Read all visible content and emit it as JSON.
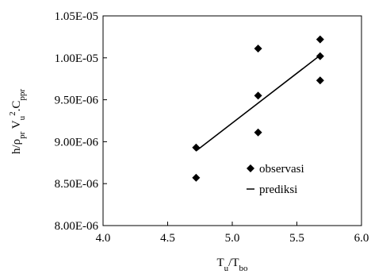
{
  "chart_data": {
    "type": "scatter",
    "xlabel": {
      "base": "T",
      "sub1": "u",
      "sep": "/T",
      "sub2": "bo"
    },
    "ylabel": {
      "p1": "h/ρ",
      "s1": "pr",
      "p2": " V",
      "s2": "u",
      "sup": "2",
      "p3": ".C",
      "s3": "ppr"
    },
    "xlim": [
      4.0,
      6.0
    ],
    "ylim": [
      8e-06,
      1.05e-05
    ],
    "x_ticks": [
      4.0,
      4.5,
      5.0,
      5.5,
      6.0
    ],
    "x_tick_labels": [
      "4.0",
      "4.5",
      "5.0",
      "5.5",
      "6.0"
    ],
    "y_ticks": [
      8e-06,
      8.5e-06,
      9e-06,
      9.5e-06,
      1e-05,
      1.05e-05
    ],
    "y_tick_labels": [
      "8.00E-06",
      "8.50E-06",
      "9.00E-06",
      "9.50E-06",
      "1.00E-05",
      "1.05E-05"
    ],
    "grid": false,
    "legend_position": "center-right",
    "series": [
      {
        "name": "observasi",
        "kind": "scatter",
        "marker": "diamond",
        "x": [
          4.72,
          4.72,
          5.2,
          5.2,
          5.2,
          5.68,
          5.68,
          5.68
        ],
        "y": [
          8.93e-06,
          8.57e-06,
          1.011e-05,
          9.55e-06,
          9.11e-06,
          1.022e-05,
          1.002e-05,
          9.73e-06
        ]
      },
      {
        "name": "prediksi",
        "kind": "line",
        "x": [
          4.72,
          5.68
        ],
        "y": [
          8.89e-06,
          1.003e-05
        ]
      }
    ],
    "colors": {
      "marker": "#000000",
      "line": "#000000",
      "axis": "#000000"
    }
  }
}
